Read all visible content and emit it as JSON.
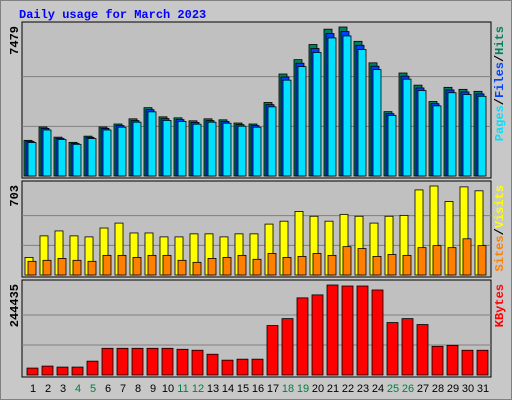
{
  "chart_data": [
    {
      "type": "bar",
      "title": "Daily usage for March 2023",
      "ylim": [
        0,
        7479
      ],
      "series": [
        {
          "name": "Hits",
          "color": "#00805c",
          "values": [
            1790,
            2460,
            1950,
            1690,
            2000,
            2460,
            2610,
            2870,
            3430,
            2970,
            2920,
            2770,
            2870,
            2820,
            2660,
            2610,
            3690,
            5120,
            5840,
            6600,
            7370,
            7479,
            6760,
            5680,
            3230,
            5170,
            4560,
            3740,
            4450,
            4350,
            4250
          ]
        },
        {
          "name": "Files",
          "color": "#0040ff",
          "values": [
            1740,
            2390,
            1890,
            1640,
            1940,
            2390,
            2530,
            2780,
            3330,
            2880,
            2830,
            2690,
            2780,
            2740,
            2580,
            2530,
            3580,
            4970,
            5660,
            6400,
            7150,
            7250,
            6560,
            5510,
            3130,
            5010,
            4420,
            3630,
            4320,
            4220,
            4120
          ]
        },
        {
          "name": "Pages",
          "color": "#00e0ff",
          "values": [
            1680,
            2310,
            1830,
            1590,
            1880,
            2310,
            2450,
            2700,
            3220,
            2790,
            2740,
            2600,
            2700,
            2650,
            2500,
            2450,
            3470,
            4810,
            5490,
            6200,
            6930,
            7030,
            6350,
            5340,
            3040,
            4860,
            4290,
            3520,
            4180,
            4090,
            4000
          ]
        }
      ],
      "legend_separator": "/"
    },
    {
      "type": "bar",
      "ylim": [
        0,
        703
      ],
      "series": [
        {
          "name": "Visits",
          "color": "#ffff00",
          "values": [
            139,
            309,
            348,
            309,
            301,
            371,
            410,
            332,
            332,
            301,
            301,
            325,
            325,
            301,
            325,
            325,
            402,
            425,
            502,
            464,
            425,
            479,
            464,
            410,
            464,
            471,
            672,
            703,
            580,
            696,
            665
          ]
        },
        {
          "name": "Sites",
          "color": "#ff8000",
          "values": [
            108,
            116,
            131,
            116,
            108,
            155,
            155,
            139,
            155,
            155,
            116,
            100,
            131,
            139,
            155,
            124,
            170,
            139,
            147,
            170,
            155,
            224,
            209,
            147,
            162,
            155,
            216,
            232,
            216,
            286,
            232
          ]
        }
      ],
      "legend_separator": "/"
    },
    {
      "type": "bar",
      "ylim": [
        0,
        244435
      ],
      "categories": [
        "1",
        "2",
        "3",
        "4",
        "5",
        "6",
        "7",
        "8",
        "9",
        "10",
        "11",
        "12",
        "13",
        "14",
        "15",
        "16",
        "17",
        "18",
        "19",
        "20",
        "21",
        "22",
        "23",
        "24",
        "25",
        "26",
        "27",
        "28",
        "29",
        "30",
        "31"
      ],
      "weekend_days": [
        "4",
        "5",
        "11",
        "12",
        "18",
        "19",
        "25",
        "26"
      ],
      "weekend_color": "#008040",
      "weekday_color": "#000000",
      "series": [
        {
          "name": "KBytes",
          "color": "#ff0000",
          "values": [
            18800,
            24200,
            21500,
            21500,
            37600,
            72500,
            72500,
            72500,
            72500,
            72500,
            69800,
            67200,
            56400,
            40300,
            43000,
            43000,
            134300,
            153100,
            209500,
            217600,
            244435,
            241700,
            241700,
            230900,
            142400,
            153100,
            137000,
            77900,
            80600,
            67200,
            67200
          ]
        }
      ]
    }
  ]
}
